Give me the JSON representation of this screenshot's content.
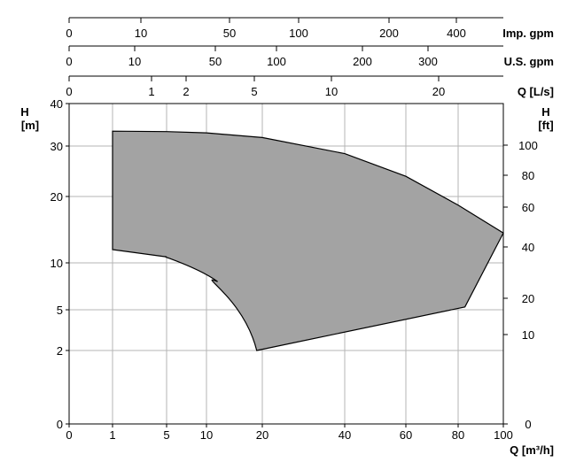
{
  "chart_data": {
    "type": "area",
    "title": "",
    "xlabel": "Q [m³/h]",
    "ylabel": "H\n[m]",
    "ylabel_right": "H\n[ft]",
    "x_scale": "nonlinear",
    "y_scale": "nonlinear",
    "grid": true,
    "legend": "none",
    "fill_color": "#a3a3a3",
    "grid_color": "#b4b4b4",
    "x_ticks": [
      "0",
      "1",
      "5",
      "10",
      "20",
      "40",
      "60",
      "80",
      "100"
    ],
    "y_ticks": [
      "0",
      "2",
      "5",
      "10",
      "20",
      "30",
      "40"
    ],
    "y_ticks_right": [
      "0",
      "10",
      "20",
      "40",
      "60",
      "80",
      "100"
    ],
    "top_axes": [
      {
        "label": "Imp. gpm",
        "ticks": [
          "0",
          "10",
          "50",
          "100",
          "200",
          "400"
        ]
      },
      {
        "label": "U.S. gpm",
        "ticks": [
          "0",
          "10",
          "50",
          "100",
          "200",
          "300"
        ]
      },
      {
        "label": "Q [L/s]",
        "ticks": [
          "0",
          "1",
          "2",
          "5",
          "10",
          "20"
        ]
      }
    ],
    "series": [
      {
        "x": [
          1,
          5,
          10,
          20,
          40,
          60,
          80,
          100,
          83,
          19,
          12,
          5,
          1
        ],
        "y": [
          33.5,
          33.4,
          33.1,
          32,
          28.5,
          24,
          18.7,
          14.5,
          5.3,
          2,
          8,
          10.9,
          12
        ]
      }
    ]
  }
}
